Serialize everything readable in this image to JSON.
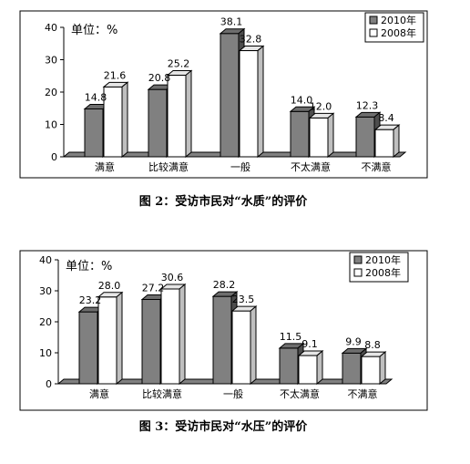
{
  "chart_data": [
    {
      "type": "bar",
      "unit_label": "单位：%",
      "categories": [
        "满意",
        "比较满意",
        "一般",
        "不太满意",
        "不满意"
      ],
      "series": [
        {
          "name": "2010年",
          "values": [
            14.8,
            20.8,
            38.1,
            14.0,
            12.3
          ]
        },
        {
          "name": "2008年",
          "values": [
            21.6,
            25.2,
            32.8,
            12.0,
            8.4
          ]
        }
      ],
      "y_ticks": [
        "0",
        "10",
        "20",
        "30",
        "40"
      ],
      "ylim": [
        0,
        40
      ],
      "legend_placement": "top-right",
      "caption": "图 2：受访市民对“水质”的评价",
      "colors": {
        "2010年": "#808080",
        "2008年": "#ffffff"
      }
    },
    {
      "type": "bar",
      "unit_label": "单位：%",
      "categories": [
        "满意",
        "比较满意",
        "一般",
        "不太满意",
        "不满意"
      ],
      "series": [
        {
          "name": "2010年",
          "values": [
            23.2,
            27.2,
            28.2,
            11.5,
            9.9
          ]
        },
        {
          "name": "2008年",
          "values": [
            28.0,
            30.6,
            23.5,
            9.1,
            8.8
          ]
        }
      ],
      "y_ticks": [
        "0",
        "10",
        "20",
        "30",
        "40"
      ],
      "ylim": [
        0,
        40
      ],
      "legend_placement": "top-right",
      "caption": "图 3：受访市民对“水压”的评价",
      "colors": {
        "2010年": "#808080",
        "2008年": "#ffffff"
      }
    }
  ]
}
